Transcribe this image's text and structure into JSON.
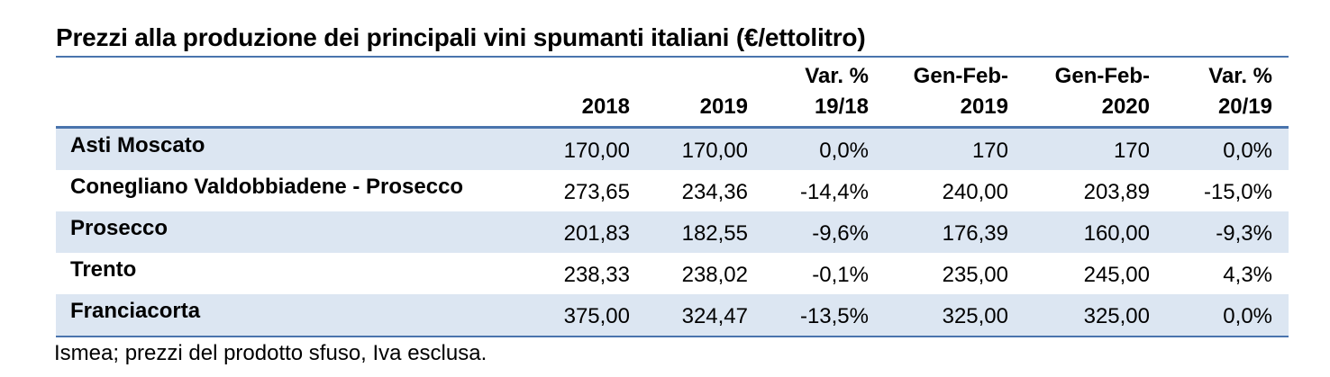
{
  "title": "Prezzi alla produzione dei principali vini spumanti italiani (€/ettolitro)",
  "columns": [
    {
      "line1": "",
      "line2": "2018"
    },
    {
      "line1": "",
      "line2": "2019"
    },
    {
      "line1": "Var. %",
      "line2": "19/18"
    },
    {
      "line1": "Gen-Feb-",
      "line2": "2019"
    },
    {
      "line1": "Gen-Feb-",
      "line2": "2020"
    },
    {
      "line1": "Var. %",
      "line2": "20/19"
    }
  ],
  "rows": [
    {
      "name": "Asti Moscato",
      "values": [
        "170,00",
        "170,00",
        "0,0%",
        "170",
        "170",
        "0,0%"
      ]
    },
    {
      "name": "Conegliano Valdobbiadene - Prosecco",
      "values": [
        "273,65",
        "234,36",
        "-14,4%",
        "240,00",
        "203,89",
        "-15,0%"
      ]
    },
    {
      "name": "Prosecco",
      "values": [
        "201,83",
        "182,55",
        "-9,6%",
        "176,39",
        "160,00",
        "-9,3%"
      ]
    },
    {
      "name": "Trento",
      "values": [
        "238,33",
        "238,02",
        "-0,1%",
        "235,00",
        "245,00",
        "4,3%"
      ]
    },
    {
      "name": "Franciacorta",
      "values": [
        "375,00",
        "324,47",
        "-13,5%",
        "325,00",
        "325,00",
        "0,0%"
      ]
    }
  ],
  "source_note": "Ismea; prezzi del prodotto sfuso, Iva esclusa.",
  "colors": {
    "rule": "#4a74ad",
    "row_shade": "#dce6f2"
  }
}
